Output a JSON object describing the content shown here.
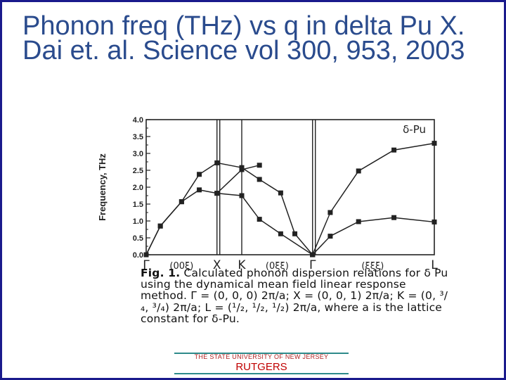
{
  "slide": {
    "title": "Phonon freq (THz) vs q in delta Pu X. Dai et. al. Science vol 300, 953, 2003",
    "caption_fig": "Fig. 1.",
    "caption_text": "Calculated phonon dispersion relations for δ Pu using the dynamical mean field linear response method. Γ = (0, 0, 0) 2π/a; X = (0, 0, 1) 2π/a; K = (0, ³/₄, ³/₄) 2π/a; L = (¹/₂, ¹/₂, ¹/₂) 2π/a, where a is the lattice constant for δ-Pu.",
    "footer_university": "THE STATE UNIVERSITY OF NEW JERSEY",
    "footer_brand": "RUTGERS"
  },
  "chart_data": {
    "type": "line",
    "title": "",
    "annotation": "δ-Pu",
    "xlabel": "",
    "ylabel": "Frequency, THz",
    "ylim": [
      0.0,
      4.0
    ],
    "yticks": [
      "0.0",
      "0.5",
      "1.0",
      "1.5",
      "2.0",
      "2.5",
      "3.0",
      "3.5",
      "4.0"
    ],
    "xlim": [
      0,
      4.07
    ],
    "symmetry_points": [
      {
        "label": "Γ",
        "x": 0
      },
      {
        "label": "X",
        "x": 1.0
      },
      {
        "label": "K",
        "x": 1.35
      },
      {
        "label": "Γ",
        "x": 2.35
      },
      {
        "label": "L",
        "x": 4.07
      }
    ],
    "direction_labels": [
      {
        "label": "(00ξ)",
        "x": 0.5
      },
      {
        "label": "(0ξξ)",
        "x": 1.85
      },
      {
        "label": "(ξξξ)",
        "x": 3.2
      }
    ],
    "series": [
      {
        "values": [
          {
            "x": 0,
            "y": 0
          },
          {
            "x": 0.2,
            "y": 0.85
          },
          {
            "x": 0.5,
            "y": 1.57
          },
          {
            "x": 0.75,
            "y": 2.38
          },
          {
            "x": 1.0,
            "y": 2.72
          },
          {
            "x": 1.35,
            "y": 2.58
          },
          {
            "x": 1.6,
            "y": 2.23
          },
          {
            "x": 1.9,
            "y": 1.83
          },
          {
            "x": 2.1,
            "y": 0.62
          },
          {
            "x": 2.35,
            "y": 0
          }
        ]
      },
      {
        "values": [
          {
            "x": 0,
            "y": 0
          },
          {
            "x": 0.2,
            "y": 0.85
          },
          {
            "x": 0.5,
            "y": 1.57
          },
          {
            "x": 0.75,
            "y": 1.92
          },
          {
            "x": 1.0,
            "y": 1.82
          },
          {
            "x": 1.35,
            "y": 1.75
          },
          {
            "x": 1.6,
            "y": 1.05
          },
          {
            "x": 1.9,
            "y": 0.62
          },
          {
            "x": 2.35,
            "y": 0
          }
        ]
      },
      {
        "values": [
          {
            "x": 1.0,
            "y": 1.82
          },
          {
            "x": 1.35,
            "y": 2.52
          },
          {
            "x": 1.6,
            "y": 2.65
          }
        ]
      },
      {
        "values": [
          {
            "x": 2.35,
            "y": 0
          },
          {
            "x": 2.6,
            "y": 1.25
          },
          {
            "x": 3.0,
            "y": 2.48
          },
          {
            "x": 3.5,
            "y": 3.1
          },
          {
            "x": 4.07,
            "y": 3.3
          }
        ]
      },
      {
        "values": [
          {
            "x": 2.35,
            "y": 0
          },
          {
            "x": 2.6,
            "y": 0.55
          },
          {
            "x": 3.0,
            "y": 0.98
          },
          {
            "x": 3.5,
            "y": 1.1
          },
          {
            "x": 4.07,
            "y": 0.97
          }
        ]
      }
    ],
    "grid": false,
    "legend": "none",
    "line_color": "#222222",
    "marker": "square"
  }
}
